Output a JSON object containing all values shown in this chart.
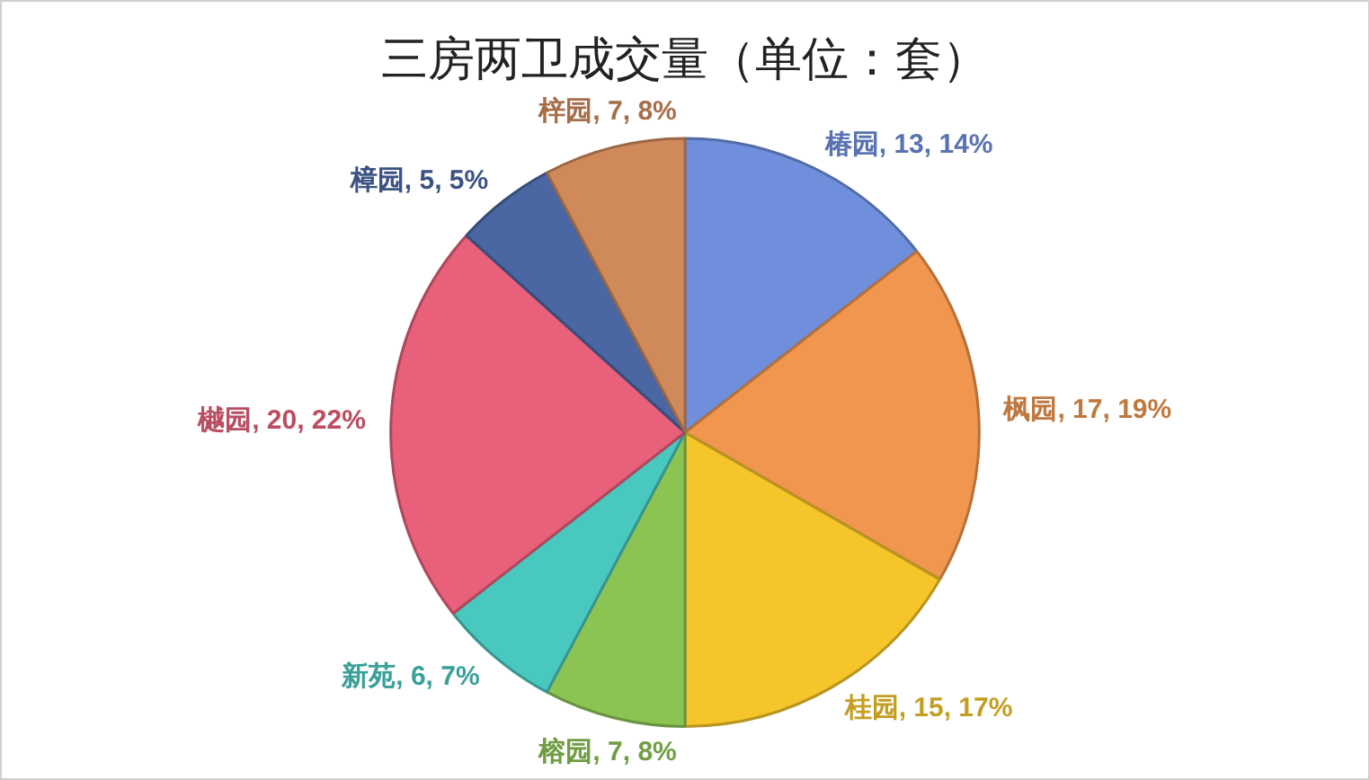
{
  "chart_data": {
    "type": "pie",
    "title": "三房两卫成交量（单位：套）",
    "categories": [
      "椿园",
      "枫园",
      "桂园",
      "榕园",
      "新苑",
      "樾园",
      "樟园",
      "梓园"
    ],
    "values": [
      13,
      17,
      15,
      7,
      6,
      20,
      5,
      7
    ],
    "value_labels": [
      "13, 14%",
      "17, 19%",
      "15, 17%",
      "7, 8%",
      "6, 7%",
      "20, 22%",
      "5, 5%",
      "7, 8%"
    ],
    "colors": [
      "#6f8fdc",
      "#f0964e",
      "#f5c52a",
      "#8cc454",
      "#48c8bf",
      "#e8607a",
      "#4a66a3",
      "#d08a5a"
    ],
    "legend": false
  }
}
